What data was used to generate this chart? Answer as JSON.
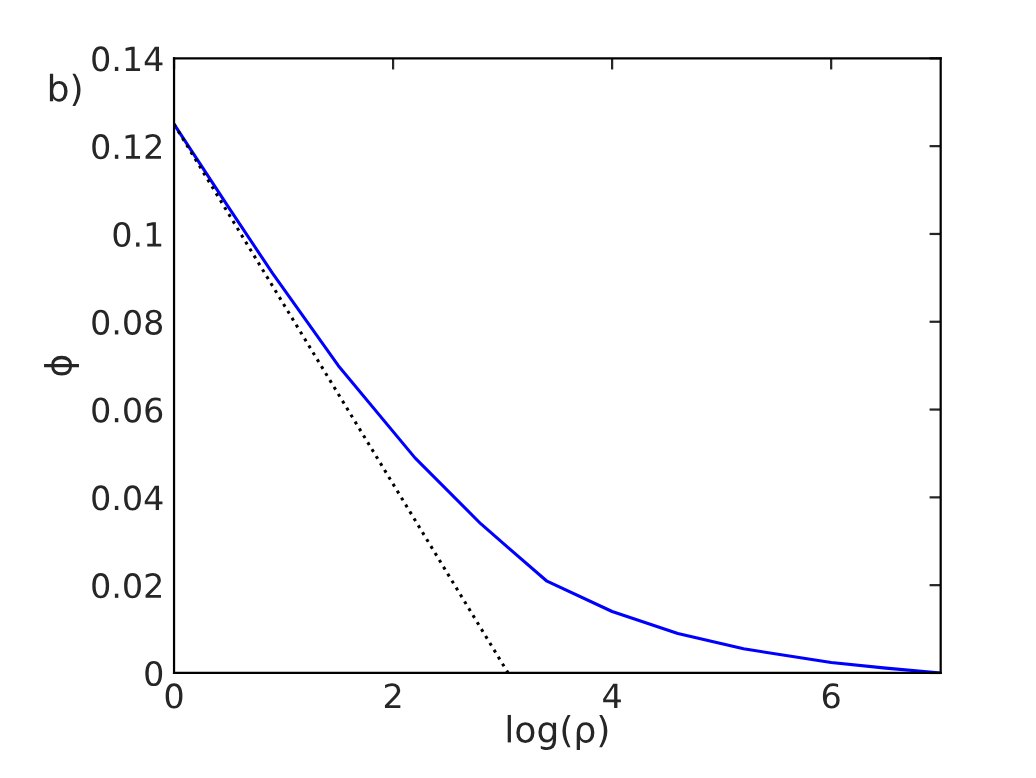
{
  "chart_data": {
    "type": "line",
    "xlabel": "log(ρ)",
    "ylabel": "ϕ",
    "annotations": [
      "b)"
    ],
    "xlim": [
      0,
      7
    ],
    "xticks": [
      0,
      2,
      4,
      6
    ],
    "ylim": [
      0,
      0.14
    ],
    "yticks": [
      0,
      0.02,
      0.04,
      0.06,
      0.08,
      0.1,
      0.12,
      0.14
    ],
    "grid": false,
    "legend": false,
    "marker": "none",
    "series": [
      {
        "color": "#0000ff",
        "line_style": "solid",
        "x": [
          0,
          0.5,
          0.9,
          1.5,
          2.2,
          2.8,
          3.4,
          4,
          4.6,
          5.2,
          6,
          6.5,
          7
        ],
        "values": [
          0.125,
          0.106,
          0.091,
          0.07,
          0.049,
          0.034,
          0.021,
          0.014,
          0.009,
          0.0055,
          0.0024,
          0.0011,
          0
        ]
      },
      {
        "color": "#000000",
        "line_style": "dotted",
        "x": [
          0,
          3.05
        ],
        "values": [
          0.125,
          0
        ]
      }
    ]
  }
}
